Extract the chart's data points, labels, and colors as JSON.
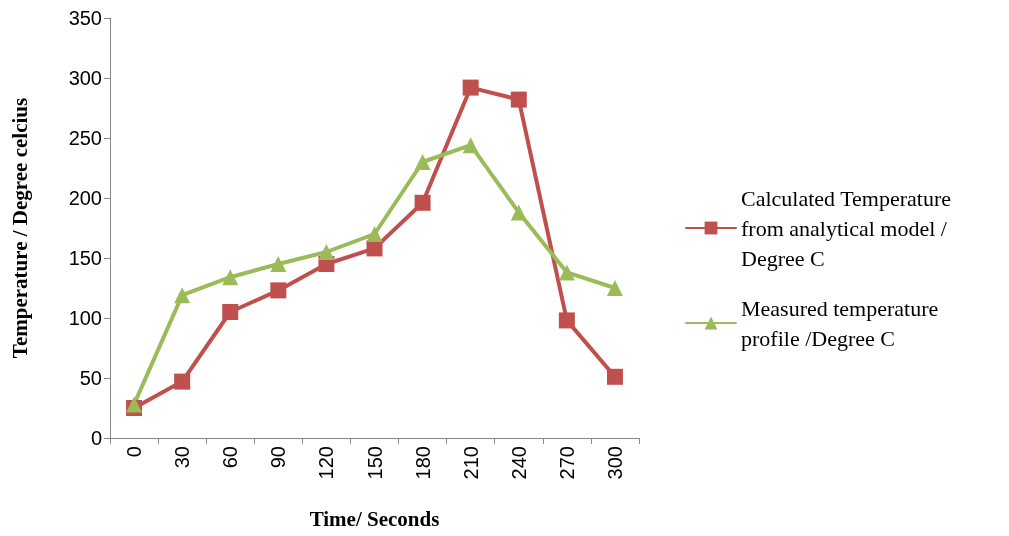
{
  "chart_data": {
    "type": "line",
    "xlabel": "Time/ Seconds",
    "ylabel": "Temperature / Degree celcius",
    "categories": [
      "0",
      "30",
      "60",
      "90",
      "120",
      "150",
      "180",
      "210",
      "240",
      "270",
      "300"
    ],
    "series": [
      {
        "name": "Calculated Temperature from analytical model /Degree C",
        "color": "#c0504d",
        "marker": "square",
        "values": [
          25,
          47,
          105,
          123,
          145,
          158,
          196,
          292,
          282,
          98,
          51
        ]
      },
      {
        "name": "Measured temperature profile /Degree C",
        "color": "#9bbb59",
        "marker": "triangle",
        "values": [
          28,
          119,
          134,
          145,
          155,
          170,
          230,
          244,
          188,
          138,
          125
        ]
      }
    ],
    "ylim": [
      0,
      350
    ],
    "yticks": [
      0,
      50,
      100,
      150,
      200,
      250,
      300,
      350
    ],
    "grid": false,
    "legend": "right",
    "line_style": "solid"
  }
}
